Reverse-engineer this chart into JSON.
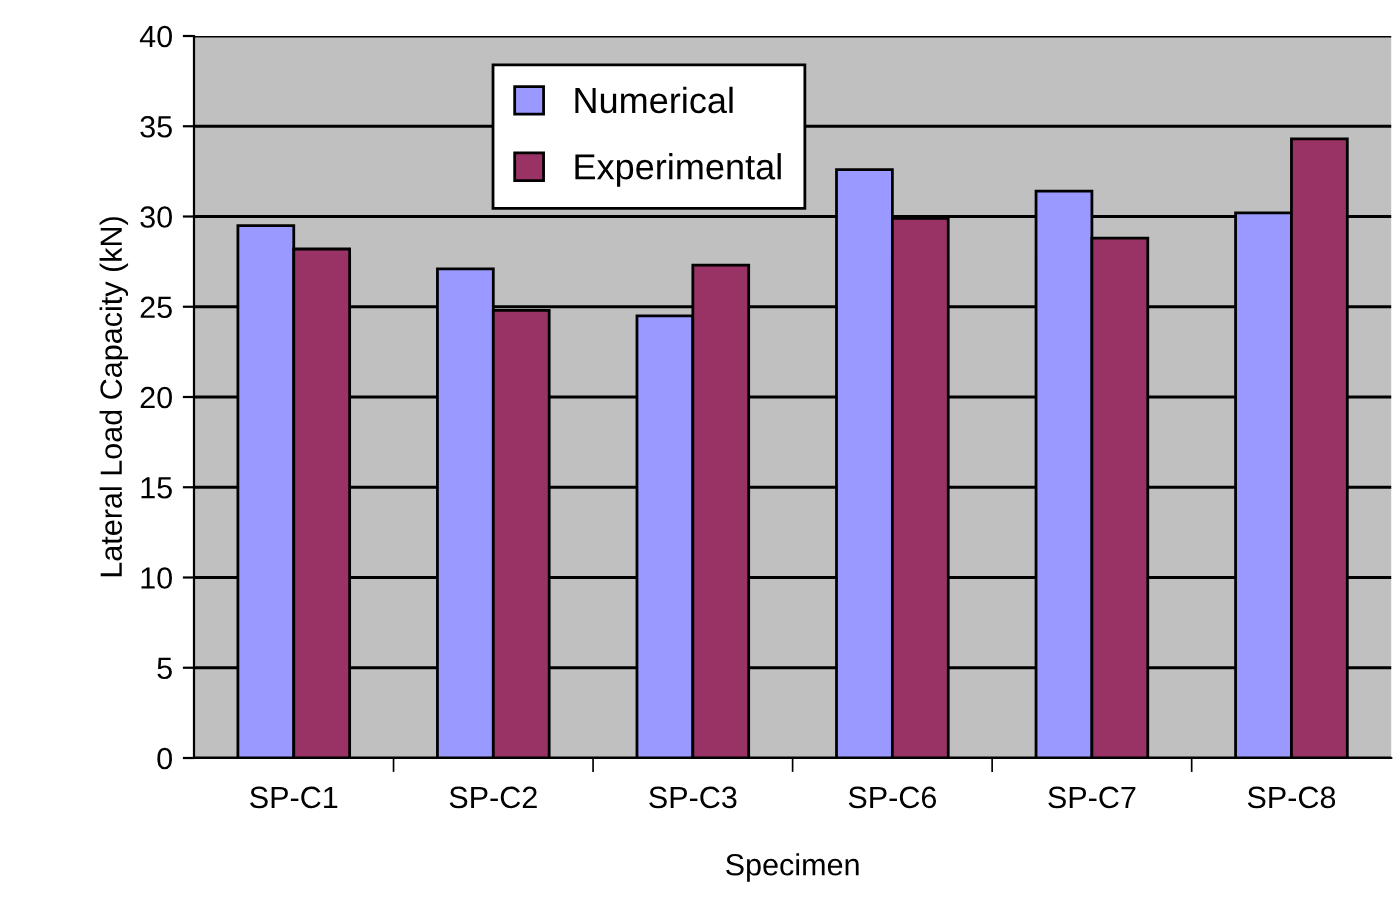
{
  "chart_data": {
    "type": "bar",
    "xlabel": "Specimen",
    "ylabel": "Lateral Load Capacity (kN)",
    "categories": [
      "SP-C1",
      "SP-C2",
      "SP-C3",
      "SP-C6",
      "SP-C7",
      "SP-C8"
    ],
    "series": [
      {
        "name": "Numerical",
        "color": "#9999ff",
        "values": [
          29.5,
          27.1,
          24.5,
          32.6,
          31.4,
          30.2
        ]
      },
      {
        "name": "Experimental",
        "color": "#993366",
        "values": [
          28.2,
          24.8,
          27.3,
          29.9,
          28.8,
          34.3
        ]
      }
    ],
    "ylim": [
      0,
      40
    ],
    "yticks": [
      0,
      5,
      10,
      15,
      20,
      25,
      30,
      35,
      40
    ],
    "grid": "y",
    "legend": "top"
  }
}
